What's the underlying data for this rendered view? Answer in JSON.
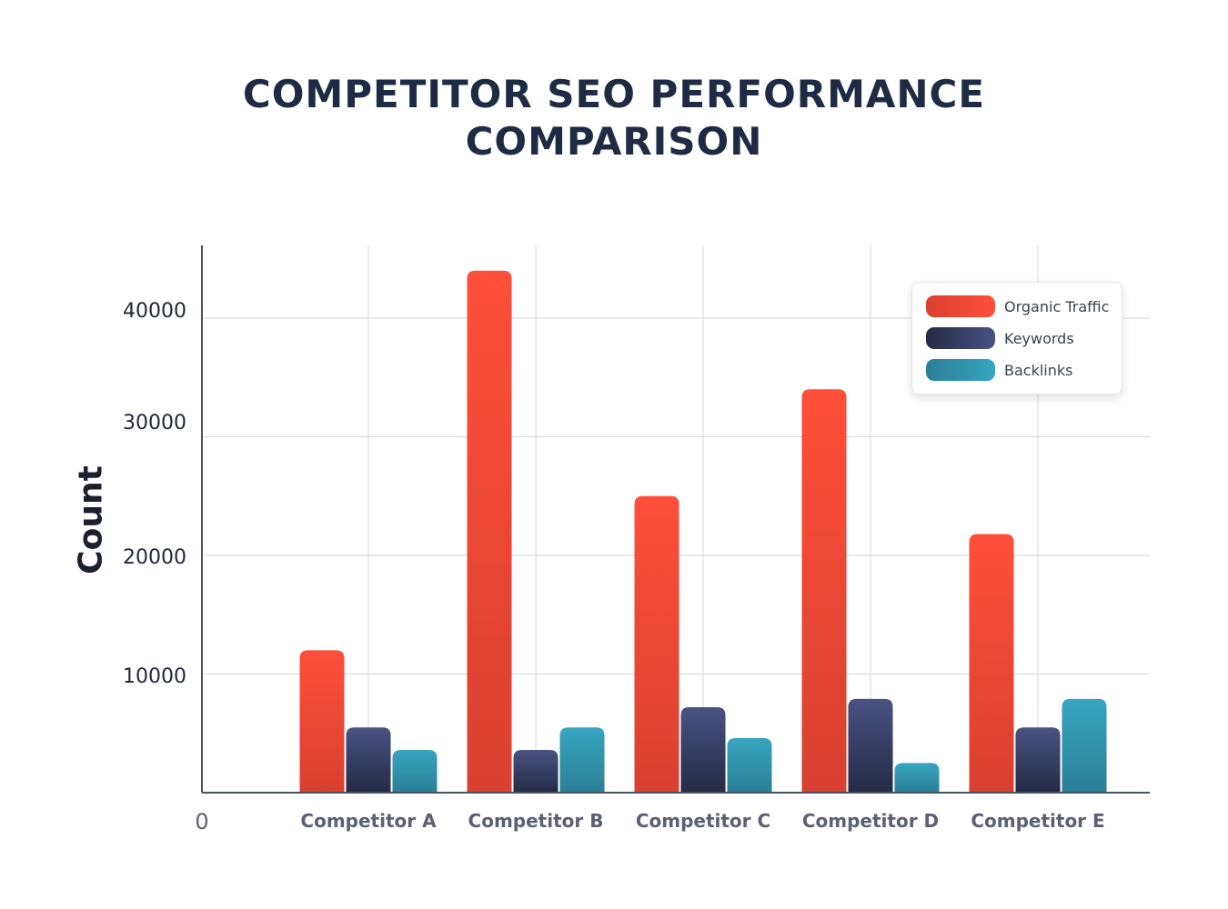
{
  "chart_data": {
    "type": "bar",
    "title": "COMPETITOR SEO PERFORMANCE COMPARISON",
    "title_lines": [
      "COMPETITOR SEO PERFORMANCE",
      "COMPARISON"
    ],
    "xlabel": "",
    "ylabel": "Count",
    "categories": [
      "Competitor A",
      "Competitor B",
      "Competitor C",
      "Competitor D",
      "Competitor E"
    ],
    "series": [
      {
        "name": "Organic Traffic",
        "values": [
          12000,
          44000,
          25000,
          34000,
          21800
        ],
        "color_top": "#fe4f3a",
        "color_bottom": "#d8402f"
      },
      {
        "name": "Keywords",
        "values": [
          5500,
          3600,
          7200,
          7900,
          5500
        ],
        "color_top": "#4a5282",
        "color_bottom": "#252a45"
      },
      {
        "name": "Backlinks",
        "values": [
          3600,
          5500,
          4600,
          2500,
          7900
        ],
        "color_top": "#37a5c1",
        "color_bottom": "#2a7f95"
      }
    ],
    "y_ticks": [
      10000,
      20000,
      30000,
      40000
    ],
    "y_tick_labels": [
      "10000",
      "20000",
      "30000",
      "40000"
    ],
    "zero_label": "0",
    "ylim": [
      0,
      46000
    ],
    "grid": true,
    "legend_position": "top-right"
  }
}
